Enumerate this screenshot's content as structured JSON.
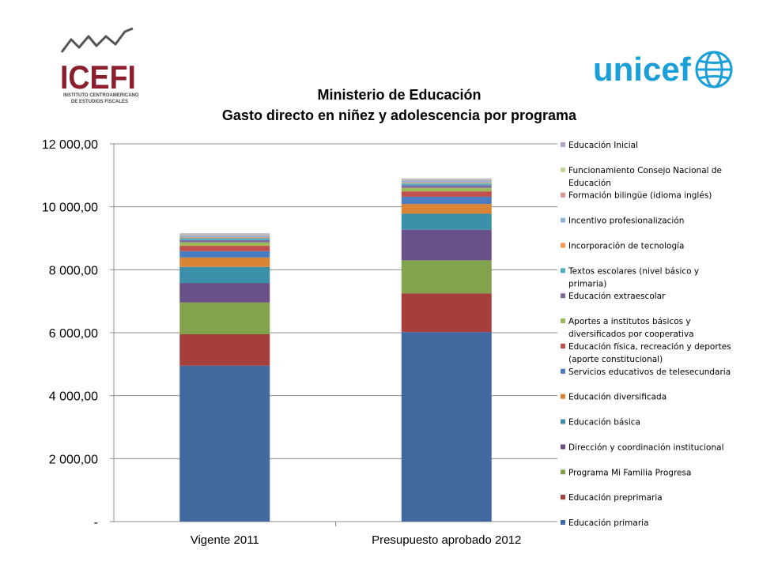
{
  "logos": {
    "icefi": {
      "name": "ICEFI",
      "tagline_1": "INSTITUTO CENTROAMERICANO",
      "tagline_2": "DE ESTUDIOS FISCALES"
    },
    "unicef": {
      "name": "unicef"
    }
  },
  "colors": {
    "icefi_brand": "#8b1e2d",
    "unicef_blue": "#1a9fd8"
  },
  "chart_data": {
    "type": "bar",
    "stacked": true,
    "title": "Ministerio de Educación",
    "subtitle": "Gasto directo en niñez y adolescencia por programa",
    "xlabel": "",
    "ylabel": "",
    "categories": [
      "Vigente 2011",
      "Presupuesto aprobado 2012"
    ],
    "ylim": [
      0,
      12000
    ],
    "yticks": [
      0,
      2000,
      4000,
      6000,
      8000,
      10000,
      12000
    ],
    "ytick_labels": [
      "-",
      "2 000,00",
      "4 000,00",
      "6 000,00",
      "8 000,00",
      "10 000,00",
      "12 000,00"
    ],
    "grid": true,
    "legend_position": "right",
    "series": [
      {
        "name": "Educación primaria",
        "color": "#4169a0",
        "values": [
          4950,
          6020
        ]
      },
      {
        "name": "Educación preprimaria",
        "color": "#a53f3c",
        "values": [
          1000,
          1230
        ]
      },
      {
        "name": "Programa Mi Familia Progresa",
        "color": "#82a24c",
        "values": [
          1010,
          1050
        ]
      },
      {
        "name": "Dirección y coordinación institucional",
        "color": "#6a5088",
        "values": [
          620,
          970
        ]
      },
      {
        "name": "Educación básica",
        "color": "#3b8fa8",
        "values": [
          510,
          510
        ]
      },
      {
        "name": "Educación diversificada",
        "color": "#d98434",
        "values": [
          300,
          310
        ]
      },
      {
        "name": "Servicios educativos de telesecundaria",
        "color": "#4a7cc0",
        "values": [
          200,
          230
        ]
      },
      {
        "name": "Educación física, recreación y deportes (aporte constitucional)",
        "color": "#c0504d",
        "values": [
          170,
          170
        ]
      },
      {
        "name": "Aportes a institutos básicos y diversificados por cooperativa",
        "color": "#9bbb59",
        "values": [
          110,
          110
        ]
      },
      {
        "name": "Educación extraescolar",
        "color": "#7f6a9c",
        "values": [
          70,
          80
        ]
      },
      {
        "name": "Textos escolares (nivel básico y primaria)",
        "color": "#4bacc6",
        "values": [
          60,
          60
        ]
      },
      {
        "name": "Incorporación de tecnología",
        "color": "#f79646",
        "values": [
          25,
          25
        ]
      },
      {
        "name": "Incentivo profesionalización",
        "color": "#95b3d7",
        "values": [
          70,
          70
        ]
      },
      {
        "name": "Formación bilingüe (idioma inglés)",
        "color": "#d99694",
        "values": [
          15,
          15
        ]
      },
      {
        "name": "Funcionamiento Consejo Nacional de Educación",
        "color": "#c3d69b",
        "values": [
          15,
          15
        ]
      },
      {
        "name": "Educación Inicial",
        "color": "#b2a2c7",
        "values": [
          30,
          30
        ]
      }
    ]
  }
}
